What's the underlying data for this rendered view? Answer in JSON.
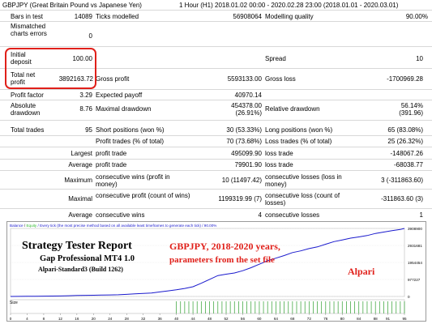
{
  "header": {
    "symbol": "GBPJPY (Great Britain Pound vs Japanese Yen)",
    "period": "1 Hour (H1) 2018.01.02 00:00 - 2020.02.28 23:00 (2018.01.01 - 2020.03.01)"
  },
  "rows": {
    "bars_label": "Bars in test",
    "bars_value": "14089",
    "ticks_label": "Ticks modelled",
    "ticks_value": "56908064",
    "quality_label": "Modelling quality",
    "quality_value": "90.00%",
    "mismatch_label": "Mismatched charts errors",
    "mismatch_value": "0",
    "deposit_label": "Initial deposit",
    "deposit_value": "100.00",
    "spread_label": "Spread",
    "spread_value": "10",
    "netprofit_label": "Total net profit",
    "netprofit_value": "3892163.72",
    "grossprofit_label": "Gross profit",
    "grossprofit_value": "5593133.00",
    "grossloss_label": "Gross loss",
    "grossloss_value": "-1700969.28",
    "pf_label": "Profit factor",
    "pf_value": "3.29",
    "payoff_label": "Expected payoff",
    "payoff_value": "40970.14",
    "absdd_label": "Absolute drawdown",
    "absdd_value": "8.76",
    "maxdd_label": "Maximal drawdown",
    "maxdd_value1": "454378.00",
    "maxdd_value2": "(26.91%)",
    "reldd_label": "Relative drawdown",
    "reldd_value1": "56.14%",
    "reldd_value2": "(391.96)",
    "trades_label": "Total trades",
    "trades_value": "95",
    "short_label": "Short positions (won %)",
    "short_value": "30 (53.33%)",
    "long_label": "Long positions (won %)",
    "long_value": "65 (83.08%)",
    "ptrades_label": "Profit trades (% of total)",
    "ptrades_value": "70 (73.68%)",
    "ltrades_label": "Loss trades (% of total)",
    "ltrades_value": "25 (26.32%)",
    "largest_label": "Largest",
    "lpt_label": "profit trade",
    "lpt_value": "495099.90",
    "llt_label": "loss trade",
    "llt_value": "-148067.26",
    "average_label": "Average",
    "apt_label": "profit trade",
    "apt_value": "79901.90",
    "alt_label": "loss trade",
    "alt_value": "-68038.77",
    "maximum_label": "Maximum",
    "mcw_label": "consecutive wins (profit in money)",
    "mcw_value": "10 (11497.42)",
    "mcl_label": "consecutive losses (loss in money)",
    "mcl_value": "3 (-311863.60)",
    "maximal_label": "Maximal",
    "mcp_label": "consecutive profit (count of wins)",
    "mcp_value": "1199319.99 (7)",
    "mcls_label": "consecutive loss (count of losses)",
    "mcls_value": "-311863.60 (3)",
    "average2_label": "Average",
    "acw_label": "consecutive wins",
    "acw_value": "4",
    "acl_label": "consecutive losses",
    "acl_value": "1"
  },
  "chart_header": {
    "balance": "Balance",
    "sep": " / ",
    "equity": "Equity",
    "rest": " / Every tick (the most precise method based on all available least timeframes to generate each tick) / 90.00%"
  },
  "overlay": {
    "title": "Strategy Tester Report",
    "subtitle": "Gap Professional MT4 1.0",
    "build": "Alpari-Standard3 (Build 1262)",
    "red_line1": "GBPJPY,  2018-2020 years,",
    "red_line2": "parameters from the set file",
    "broker": "Alpari"
  },
  "size_label": "Size",
  "colors": {
    "balance": "#1a1acd",
    "equity": "#2bb52b",
    "highlight": "#e0201a",
    "overlay_red": "#e0201a",
    "size_bars": "#2e9e2e"
  },
  "chart_data": {
    "type": "line",
    "series": [
      {
        "name": "Balance",
        "x": [
          0,
          2,
          4,
          6,
          8,
          10,
          12,
          14,
          16,
          18,
          20,
          22,
          24,
          26,
          28,
          30,
          32,
          34,
          36,
          38,
          40,
          42,
          44,
          46,
          48,
          50,
          52,
          54,
          56,
          58,
          60,
          62,
          64,
          66,
          68,
          70,
          72,
          74,
          76,
          78,
          80,
          82,
          84,
          86,
          88,
          90,
          92,
          94,
          95
        ],
        "values": [
          100,
          3000,
          8000,
          12000,
          20000,
          25000,
          30000,
          40000,
          55000,
          65000,
          70000,
          80000,
          90000,
          100000,
          120000,
          150000,
          170000,
          200000,
          260000,
          320000,
          380000,
          460000,
          560000,
          760000,
          980000,
          1200000,
          1280000,
          1350000,
          1480000,
          1650000,
          1850000,
          2050000,
          2200000,
          2350000,
          2520000,
          2620000,
          2750000,
          2850000,
          3000000,
          3150000,
          3250000,
          3350000,
          3420000,
          3500000,
          3620000,
          3700000,
          3780000,
          3850000,
          3908900
        ]
      }
    ],
    "y_ticks": [
      "3908900",
      "2931681",
      "1954454",
      "977227",
      "0"
    ],
    "x_ticks": [
      "0",
      "4",
      "8",
      "12",
      "16",
      "20",
      "24",
      "28",
      "32",
      "36",
      "40",
      "44",
      "48",
      "52",
      "56",
      "60",
      "64",
      "68",
      "72",
      "76",
      "80",
      "84",
      "88",
      "91",
      "95"
    ],
    "ylim": [
      0,
      3908900
    ],
    "xlim": [
      0,
      95
    ],
    "size_pane": {
      "bars_start": 40,
      "bars_end": 95
    }
  }
}
